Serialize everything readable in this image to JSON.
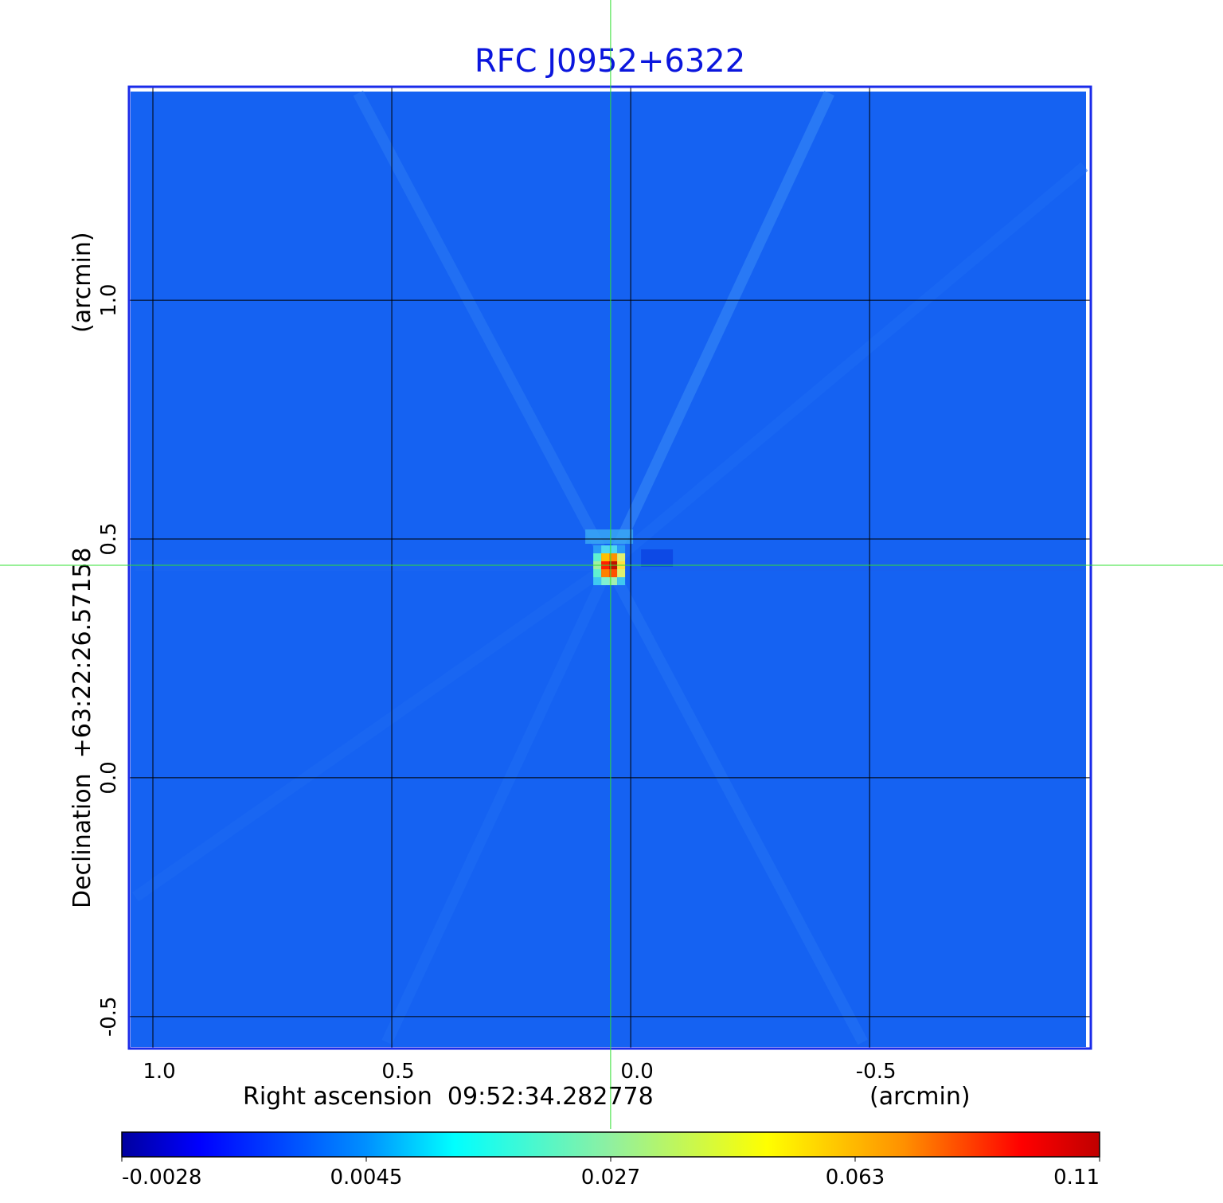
{
  "chart_data": {
    "type": "heatmap",
    "title": "RFC J0952+6322",
    "xlabel": "Right ascension  09:52:34.282778",
    "xunit": "(arcmin)",
    "ylabel": "Declination  +63:22:26.57158",
    "yunit": "(arcmin)",
    "xlim": [
      1.05,
      -0.963
    ],
    "ylim": [
      -0.567,
      1.447
    ],
    "xticks": [
      {
        "v": 1.0,
        "label": "1.0"
      },
      {
        "v": 0.5,
        "label": "0.5"
      },
      {
        "v": 0.0,
        "label": "0.0"
      },
      {
        "v": -0.5,
        "label": "-0.5"
      }
    ],
    "yticks": [
      {
        "v": 1.0,
        "label": "1.0"
      },
      {
        "v": 0.5,
        "label": "0.5"
      },
      {
        "v": 0.0,
        "label": "0.0"
      },
      {
        "v": -0.5,
        "label": "-0.5"
      }
    ],
    "grid": true,
    "crosshair": {
      "x": 0.042,
      "y": 0.445
    },
    "background_level": -0.0005,
    "source": {
      "x": 0.045,
      "y": 0.445,
      "peak": 0.11
    },
    "colorbar": {
      "placement": "bottom",
      "colormap": "jet",
      "ticks": [
        {
          "f": 0,
          "label": "-0.0028"
        },
        {
          "f": 0.25,
          "label": "0.0045"
        },
        {
          "f": 0.5,
          "label": "0.027"
        },
        {
          "f": 0.75,
          "label": "0.063"
        },
        {
          "f": 1,
          "label": "0.11"
        }
      ]
    },
    "colors": {
      "title": "#0b16dd",
      "frame": "#1a2bea",
      "background": "#1562f2",
      "grid": "#000000",
      "crosshair": "#30e030"
    }
  }
}
